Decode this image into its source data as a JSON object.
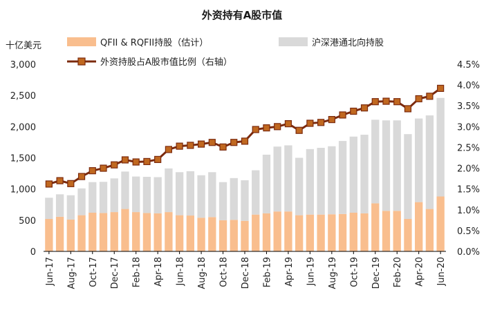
{
  "chart_data": {
    "type": "bar",
    "title": "外资持有A股市值",
    "left_unit": "十亿美元",
    "categories": [
      "Jun-17",
      "Jul-17",
      "Aug-17",
      "Sep-17",
      "Oct-17",
      "Nov-17",
      "Dec-17",
      "Jan-18",
      "Feb-18",
      "Mar-18",
      "Apr-18",
      "May-18",
      "Jun-18",
      "Jul-18",
      "Aug-18",
      "Sep-18",
      "Oct-18",
      "Nov-18",
      "Dec-18",
      "Jan-19",
      "Feb-19",
      "Mar-19",
      "Apr-19",
      "May-19",
      "Jun-19",
      "Jul-19",
      "Aug-19",
      "Sep-19",
      "Oct-19",
      "Nov-19",
      "Dec-19",
      "Jan-20",
      "Feb-20",
      "Mar-20",
      "Apr-20",
      "May-20",
      "Jun-20"
    ],
    "x_tick_labels": [
      "Jun-17",
      "Aug-17",
      "Oct-17",
      "Dec-17",
      "Feb-18",
      "Apr-18",
      "Jun-18",
      "Aug-18",
      "Oct-18",
      "Dec-18",
      "Feb-19",
      "Apr-19",
      "Jun-19",
      "Aug-19",
      "Oct-19",
      "Dec-19",
      "Feb-20",
      "Apr-20",
      "Jun-20"
    ],
    "stacked": true,
    "series": [
      {
        "name": "QFII & RQFII持股（估计）",
        "kind": "bar",
        "axis": "left",
        "color": "#F9BE8E",
        "values": [
          520,
          555,
          510,
          580,
          620,
          615,
          630,
          680,
          630,
          615,
          610,
          630,
          580,
          575,
          540,
          550,
          500,
          505,
          490,
          590,
          610,
          640,
          640,
          580,
          590,
          590,
          595,
          600,
          620,
          610,
          770,
          650,
          650,
          520,
          790,
          680,
          880
        ]
      },
      {
        "name": "沪深港通北向持股",
        "kind": "bar",
        "axis": "left",
        "color": "#D9D9D9",
        "values": [
          340,
          360,
          390,
          430,
          490,
          500,
          540,
          600,
          570,
          580,
          580,
          700,
          690,
          710,
          680,
          720,
          610,
          670,
          650,
          710,
          940,
          1040,
          1060,
          920,
          1050,
          1070,
          1090,
          1170,
          1220,
          1260,
          1340,
          1450,
          1450,
          1360,
          1340,
          1500,
          1580
        ]
      },
      {
        "name": "外资持股占A股市值比例（右轴）",
        "kind": "line",
        "axis": "right",
        "color": "#7B2A0E",
        "marker_color": "#C06820",
        "values": [
          1.62,
          1.7,
          1.63,
          1.8,
          1.94,
          2.0,
          2.08,
          2.2,
          2.15,
          2.16,
          2.21,
          2.45,
          2.53,
          2.55,
          2.58,
          2.62,
          2.51,
          2.62,
          2.65,
          2.93,
          2.97,
          3.0,
          3.07,
          2.91,
          3.08,
          3.1,
          3.17,
          3.28,
          3.37,
          3.45,
          3.6,
          3.61,
          3.6,
          3.43,
          3.67,
          3.73,
          3.92
        ]
      }
    ],
    "left_axis": {
      "min": 0,
      "max": 3000,
      "ticks": [
        "0",
        "500",
        "1,000",
        "1,500",
        "2,000",
        "2,500",
        "3,000"
      ]
    },
    "right_axis": {
      "min": 0,
      "max": 4.5,
      "ticks": [
        "0.0%",
        "0.5%",
        "1.0%",
        "1.5%",
        "2.0%",
        "2.5%",
        "3.0%",
        "3.5%",
        "4.0%",
        "4.5%"
      ]
    },
    "grid": false,
    "legend_position": "top"
  }
}
